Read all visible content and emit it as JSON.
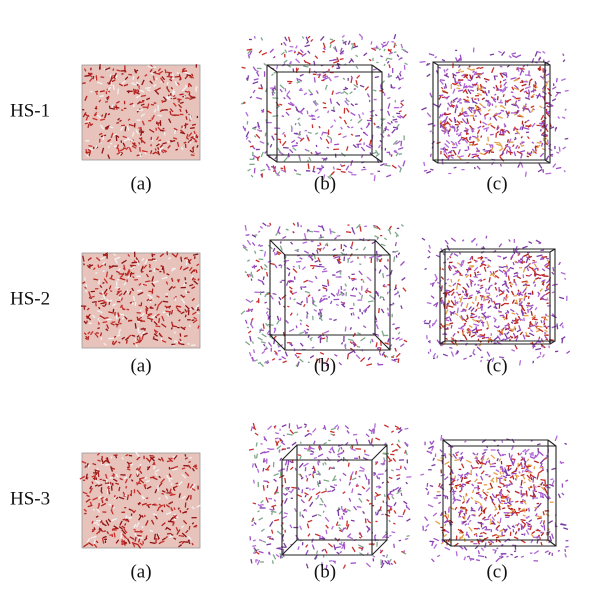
{
  "rows": [
    {
      "label": "HS-1",
      "panels": [
        "(a)",
        "(b)",
        "(c)"
      ]
    },
    {
      "label": "HS-2",
      "panels": [
        "(a)",
        "(b)",
        "(c)"
      ]
    },
    {
      "label": "HS-3",
      "panels": [
        "(a)",
        "(b)",
        "(c)"
      ]
    }
  ]
}
